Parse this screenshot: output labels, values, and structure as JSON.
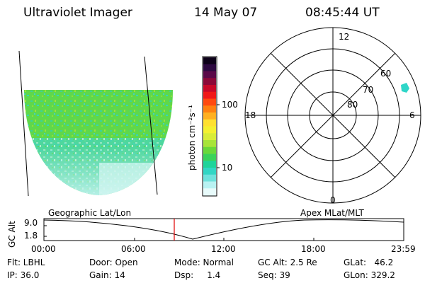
{
  "header": {
    "instrument": "Ultraviolet Imager",
    "date": "14 May 07",
    "time": "08:45:44 UT"
  },
  "colorbar": {
    "unit_label": "photon cm⁻²s⁻¹",
    "ticks": [
      "100",
      "10"
    ],
    "colors": [
      "#e8fbfb",
      "#b8f2f2",
      "#6fe2dc",
      "#32d6c4",
      "#1fd49a",
      "#3ad25a",
      "#6ad83a",
      "#a8e43a",
      "#d8ec38",
      "#f4f030",
      "#ffe030",
      "#ffb020",
      "#ff8010",
      "#ff4a10",
      "#f01818",
      "#c80828",
      "#8c0838",
      "#5a0848",
      "#2c0840",
      "#0c0018"
    ]
  },
  "polar": {
    "hour_labels": {
      "top": "12",
      "bottom": "0",
      "left": "18",
      "right": "6"
    },
    "lat_labels": [
      "60",
      "70",
      "80"
    ]
  },
  "map_labels": {
    "left": "Geographic Lat/Lon",
    "right": "Apex  MLat/MLT"
  },
  "gc_plot": {
    "ylabel": "GC Alt",
    "ymax": "9.0",
    "ymin": "1.8",
    "xticks": [
      "00:00",
      "06:00",
      "12:00",
      "18:00",
      "23:59"
    ]
  },
  "footer": {
    "flt": "Flt: LBHL",
    "ip": "IP: 36.0",
    "door": "Door: Open",
    "gain": "Gain: 14",
    "mode": "Mode: Normal",
    "dsp": "Dsp:     1.4",
    "gcalt": "GC Alt: 2.5 Re",
    "seq": "Seq: 39",
    "glat": "GLat:   46.2",
    "glon": "GLon: 329.2"
  }
}
